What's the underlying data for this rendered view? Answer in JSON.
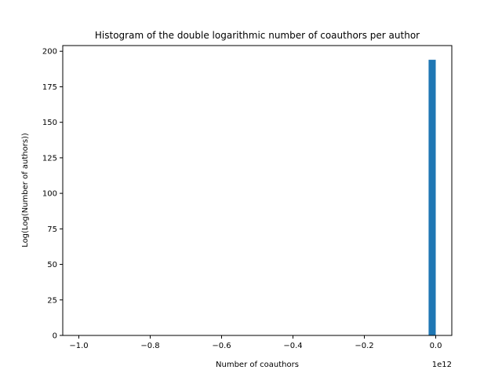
{
  "chart_data": {
    "type": "bar",
    "title": "Histogram of the double logarithmic number of coauthors per author",
    "xlabel": "Number of coauthors",
    "ylabel": "Log(Log(Number of authors))",
    "x_offset_label": "1e12",
    "xlim": [
      -1.045,
      0.045
    ],
    "ylim": [
      0,
      204
    ],
    "x_ticks": [
      {
        "value": -1.0,
        "label": "−1.0"
      },
      {
        "value": -0.8,
        "label": "−0.8"
      },
      {
        "value": -0.6,
        "label": "−0.6"
      },
      {
        "value": -0.4,
        "label": "−0.4"
      },
      {
        "value": -0.2,
        "label": "−0.2"
      },
      {
        "value": 0.0,
        "label": "0.0"
      }
    ],
    "y_ticks": [
      {
        "value": 0,
        "label": "0"
      },
      {
        "value": 25,
        "label": "25"
      },
      {
        "value": 50,
        "label": "50"
      },
      {
        "value": 75,
        "label": "75"
      },
      {
        "value": 100,
        "label": "100"
      },
      {
        "value": 125,
        "label": "125"
      },
      {
        "value": 150,
        "label": "150"
      },
      {
        "value": 175,
        "label": "175"
      },
      {
        "value": 200,
        "label": "200"
      }
    ],
    "bins": [
      {
        "x0": -0.02,
        "x1": 0.0,
        "value": 194
      }
    ],
    "bar_color": "#1f77b4",
    "grid": false,
    "legend": "none"
  }
}
